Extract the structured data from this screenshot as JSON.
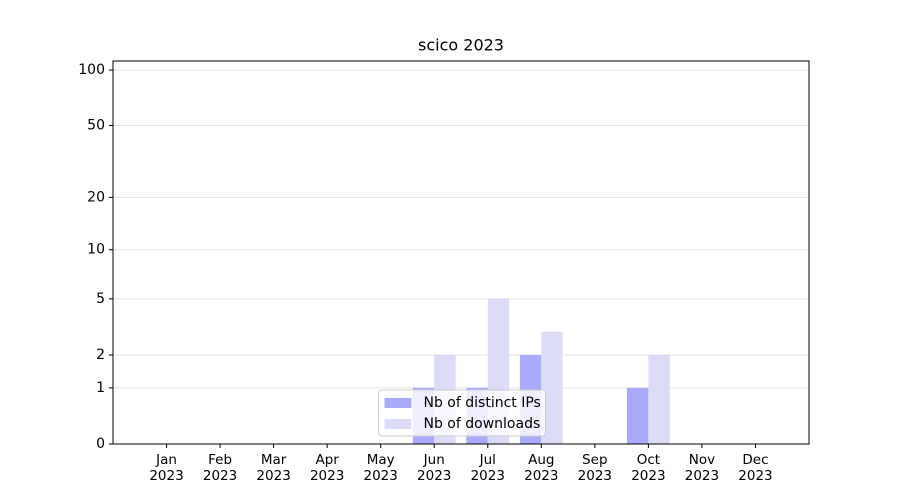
{
  "chart_data": {
    "type": "bar",
    "title": "scico 2023",
    "categories": [
      "Jan\n2023",
      "Feb\n2023",
      "Mar\n2023",
      "Apr\n2023",
      "May\n2023",
      "Jun\n2023",
      "Jul\n2023",
      "Aug\n2023",
      "Sep\n2023",
      "Oct\n2023",
      "Nov\n2023",
      "Dec\n2023"
    ],
    "series": [
      {
        "name": "Nb of distinct IPs",
        "color": "#aaaafa",
        "values": [
          0,
          0,
          0,
          0,
          0,
          1,
          1,
          2,
          0,
          1,
          0,
          0
        ]
      },
      {
        "name": "Nb of downloads",
        "color": "#dcdcf8",
        "values": [
          0,
          0,
          0,
          0,
          0,
          2,
          5,
          3,
          0,
          2,
          0,
          0
        ]
      }
    ],
    "yscale": "log1p",
    "ylim": [
      0,
      112
    ],
    "yticks": [
      0,
      1,
      2,
      5,
      10,
      20,
      50,
      100
    ],
    "grid": true,
    "legend": "lower center"
  }
}
